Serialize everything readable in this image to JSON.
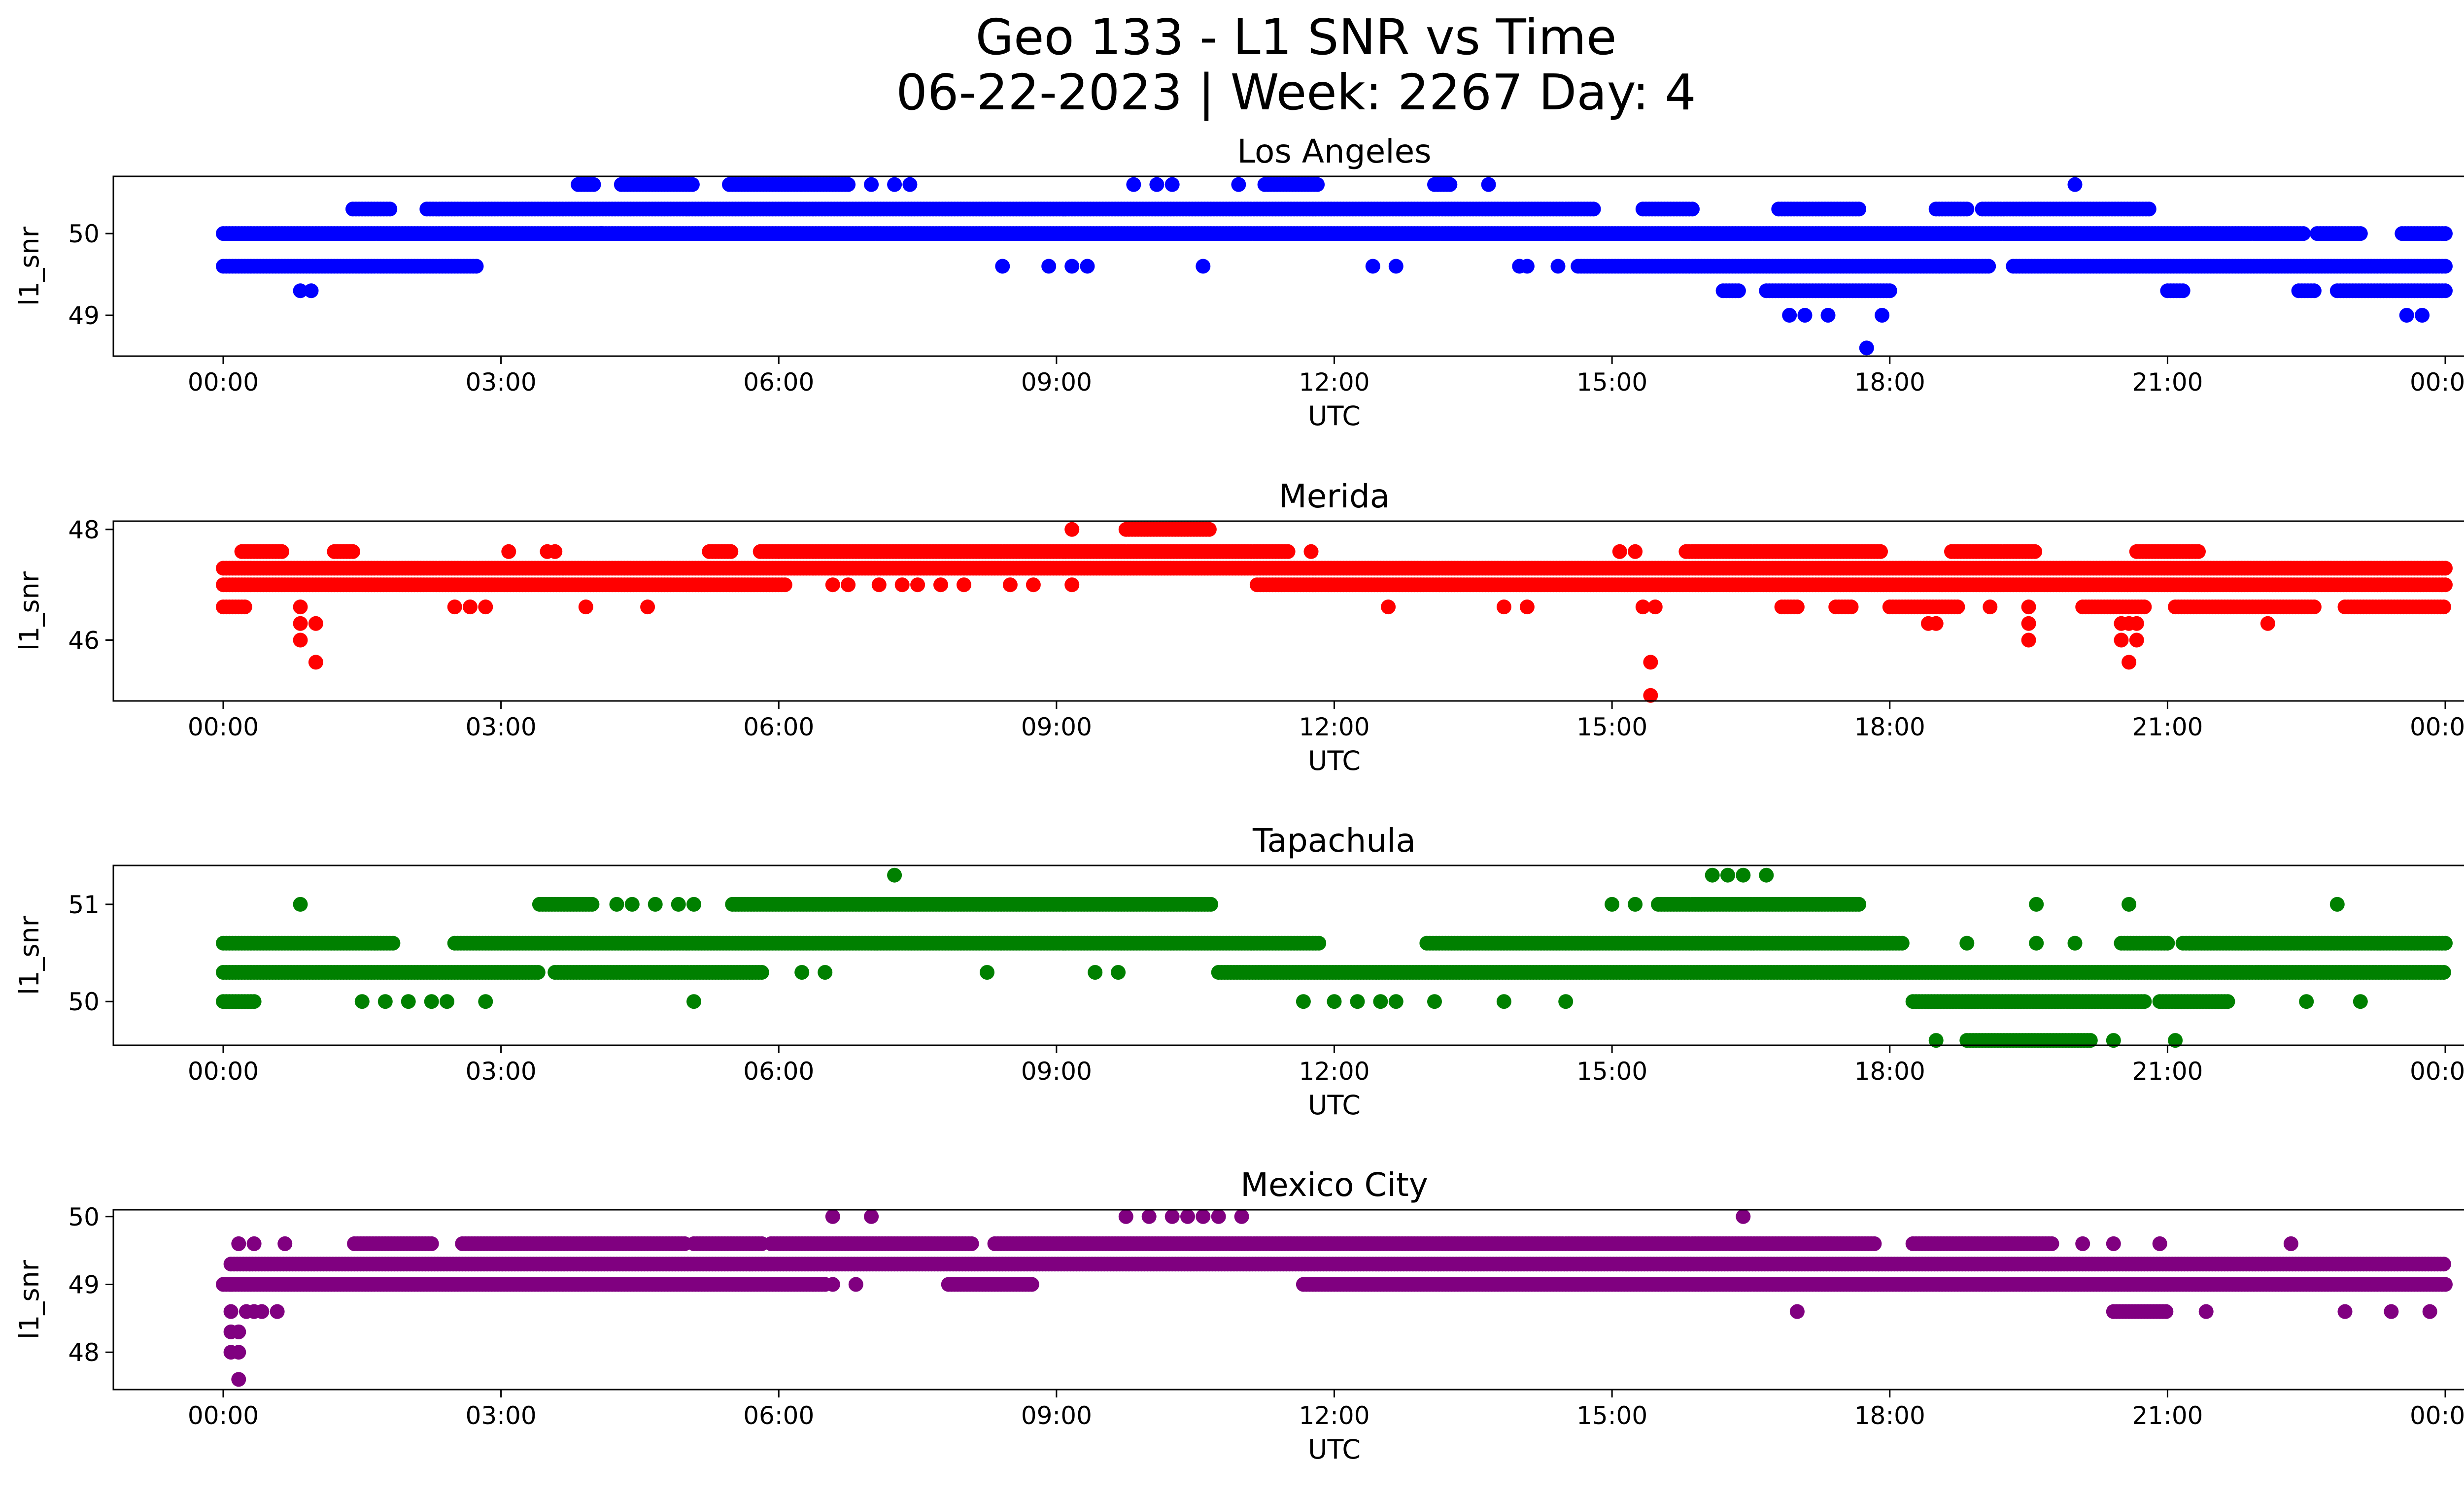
{
  "figure": {
    "title_line1": "Geo 133 - L1 SNR vs Time",
    "title_line2": "06-22-2023 | Week: 2267 Day: 4"
  },
  "chart_data": [
    {
      "type": "scatter",
      "title": "Los Angeles",
      "xlabel": "UTC",
      "ylabel": "l1_snr",
      "color": "#0000ff",
      "xlim": [
        "00:00",
        "24:00"
      ],
      "ylim": [
        48.5,
        50.7
      ],
      "x_ticks": [
        "00:00",
        "03:00",
        "06:00",
        "09:00",
        "12:00",
        "15:00",
        "18:00",
        "21:00",
        "00:00"
      ],
      "y_ticks": [
        49,
        50
      ],
      "runs": [
        {
          "y": 50.0,
          "from": "00:00",
          "to": "22:28"
        },
        {
          "y": 50.0,
          "from": "22:37",
          "to": "23:05"
        },
        {
          "y": 50.0,
          "from": "23:32",
          "to": "24:00"
        },
        {
          "y": 50.3,
          "from": "01:24",
          "to": "01:48"
        },
        {
          "y": 50.3,
          "from": "02:12",
          "to": "14:48"
        },
        {
          "y": 50.3,
          "from": "15:20",
          "to": "15:52"
        },
        {
          "y": 50.3,
          "from": "16:48",
          "to": "17:40"
        },
        {
          "y": 50.3,
          "from": "18:30",
          "to": "18:50"
        },
        {
          "y": 50.3,
          "from": "19:00",
          "to": "20:48"
        },
        {
          "y": 49.6,
          "from": "00:00",
          "to": "02:45"
        },
        {
          "y": 49.6,
          "from": "14:38",
          "to": "19:05"
        },
        {
          "y": 49.6,
          "from": "19:20",
          "to": "24:00"
        },
        {
          "y": 49.3,
          "from": "16:12",
          "to": "16:22"
        },
        {
          "y": 49.3,
          "from": "16:40",
          "to": "18:00"
        },
        {
          "y": 49.3,
          "from": "21:00",
          "to": "21:10"
        },
        {
          "y": 49.3,
          "from": "22:25",
          "to": "22:35"
        },
        {
          "y": 49.3,
          "from": "22:50",
          "to": "24:00"
        },
        {
          "y": 50.6,
          "from": "03:50",
          "to": "04:00"
        },
        {
          "y": 50.6,
          "from": "04:18",
          "to": "05:05"
        },
        {
          "y": 50.6,
          "from": "05:28",
          "to": "06:15"
        },
        {
          "y": 50.6,
          "from": "06:15",
          "to": "06:45"
        },
        {
          "y": 50.6,
          "from": "11:15",
          "to": "11:50"
        },
        {
          "y": 50.6,
          "from": "13:05",
          "to": "13:15"
        }
      ],
      "points": [
        {
          "x": "00:50",
          "y": 49.3
        },
        {
          "x": "00:57",
          "y": 49.3
        },
        {
          "x": "07:00",
          "y": 50.6
        },
        {
          "x": "07:15",
          "y": 50.6
        },
        {
          "x": "07:25",
          "y": 50.6
        },
        {
          "x": "09:50",
          "y": 50.6
        },
        {
          "x": "10:05",
          "y": 50.6
        },
        {
          "x": "10:15",
          "y": 50.6
        },
        {
          "x": "10:58",
          "y": 50.6
        },
        {
          "x": "13:40",
          "y": 50.6
        },
        {
          "x": "20:00",
          "y": 50.6
        },
        {
          "x": "08:25",
          "y": 49.6
        },
        {
          "x": "08:55",
          "y": 49.6
        },
        {
          "x": "09:10",
          "y": 49.6
        },
        {
          "x": "09:20",
          "y": 49.6
        },
        {
          "x": "10:35",
          "y": 49.6
        },
        {
          "x": "12:25",
          "y": 49.6
        },
        {
          "x": "12:40",
          "y": 49.6
        },
        {
          "x": "14:00",
          "y": 49.6
        },
        {
          "x": "14:05",
          "y": 49.6
        },
        {
          "x": "14:25",
          "y": 49.6
        },
        {
          "x": "04:05",
          "y": 50.0
        },
        {
          "x": "16:55",
          "y": 49.0
        },
        {
          "x": "17:05",
          "y": 49.0
        },
        {
          "x": "17:20",
          "y": 49.0
        },
        {
          "x": "17:55",
          "y": 49.0
        },
        {
          "x": "23:35",
          "y": 49.0
        },
        {
          "x": "23:45",
          "y": 49.0
        },
        {
          "x": "17:45",
          "y": 48.6
        }
      ]
    },
    {
      "type": "scatter",
      "title": "Merida",
      "xlabel": "UTC",
      "ylabel": "l1_snr",
      "color": "#ff0000",
      "xlim": [
        "00:00",
        "24:00"
      ],
      "ylim": [
        44.9,
        48.15
      ],
      "x_ticks": [
        "00:00",
        "03:00",
        "06:00",
        "09:00",
        "12:00",
        "15:00",
        "18:00",
        "21:00",
        "00:00"
      ],
      "y_ticks": [
        46,
        48
      ],
      "runs": [
        {
          "y": 47.3,
          "from": "00:00",
          "to": "24:00"
        },
        {
          "y": 47.0,
          "from": "00:00",
          "to": "06:05"
        },
        {
          "y": 47.0,
          "from": "11:10",
          "to": "24:00"
        },
        {
          "y": 47.6,
          "from": "00:12",
          "to": "00:38"
        },
        {
          "y": 47.6,
          "from": "01:12",
          "to": "01:25"
        },
        {
          "y": 47.6,
          "from": "05:15",
          "to": "05:30"
        },
        {
          "y": 47.6,
          "from": "05:48",
          "to": "06:00"
        },
        {
          "y": 47.6,
          "from": "06:00",
          "to": "11:30"
        },
        {
          "y": 47.6,
          "from": "15:48",
          "to": "17:55"
        },
        {
          "y": 47.6,
          "from": "18:40",
          "to": "19:35"
        },
        {
          "y": 47.6,
          "from": "20:40",
          "to": "21:20"
        },
        {
          "y": 46.6,
          "from": "00:00",
          "to": "00:15"
        },
        {
          "y": 46.6,
          "from": "16:50",
          "to": "17:00"
        },
        {
          "y": 46.6,
          "from": "17:25",
          "to": "17:35"
        },
        {
          "y": 46.6,
          "from": "18:00",
          "to": "18:45"
        },
        {
          "y": 46.6,
          "from": "20:05",
          "to": "20:45"
        },
        {
          "y": 46.6,
          "from": "21:05",
          "to": "22:35"
        },
        {
          "y": 46.6,
          "from": "22:55",
          "to": "24:00"
        },
        {
          "y": 48.0,
          "from": "09:45",
          "to": "10:40"
        }
      ],
      "points": [
        {
          "x": "06:35",
          "y": 47.0
        },
        {
          "x": "06:45",
          "y": 47.0
        },
        {
          "x": "07:05",
          "y": 47.0
        },
        {
          "x": "07:20",
          "y": 47.0
        },
        {
          "x": "07:30",
          "y": 47.0
        },
        {
          "x": "07:45",
          "y": 47.0
        },
        {
          "x": "08:00",
          "y": 47.0
        },
        {
          "x": "08:30",
          "y": 47.0
        },
        {
          "x": "08:45",
          "y": 47.0
        },
        {
          "x": "09:10",
          "y": 47.0
        },
        {
          "x": "03:05",
          "y": 47.6
        },
        {
          "x": "03:30",
          "y": 47.6
        },
        {
          "x": "03:35",
          "y": 47.6
        },
        {
          "x": "11:45",
          "y": 47.6
        },
        {
          "x": "15:05",
          "y": 47.6
        },
        {
          "x": "15:15",
          "y": 47.6
        },
        {
          "x": "09:10",
          "y": 48.0
        },
        {
          "x": "02:30",
          "y": 46.6
        },
        {
          "x": "02:40",
          "y": 46.6
        },
        {
          "x": "02:50",
          "y": 46.6
        },
        {
          "x": "03:55",
          "y": 46.6
        },
        {
          "x": "04:35",
          "y": 46.6
        },
        {
          "x": "12:35",
          "y": 46.6
        },
        {
          "x": "13:50",
          "y": 46.6
        },
        {
          "x": "14:05",
          "y": 46.6
        },
        {
          "x": "15:20",
          "y": 46.6
        },
        {
          "x": "15:28",
          "y": 46.6
        },
        {
          "x": "19:05",
          "y": 46.6
        },
        {
          "x": "19:30",
          "y": 46.6
        },
        {
          "x": "00:50",
          "y": 46.6
        },
        {
          "x": "00:50",
          "y": 46.3
        },
        {
          "x": "01:00",
          "y": 46.3
        },
        {
          "x": "00:50",
          "y": 46.0
        },
        {
          "x": "01:00",
          "y": 45.6
        },
        {
          "x": "15:25",
          "y": 45.6
        },
        {
          "x": "15:25",
          "y": 45.0
        },
        {
          "x": "18:25",
          "y": 46.3
        },
        {
          "x": "18:30",
          "y": 46.3
        },
        {
          "x": "19:30",
          "y": 46.3
        },
        {
          "x": "19:30",
          "y": 46.0
        },
        {
          "x": "20:30",
          "y": 46.3
        },
        {
          "x": "20:35",
          "y": 46.3
        },
        {
          "x": "20:40",
          "y": 46.3
        },
        {
          "x": "20:30",
          "y": 46.0
        },
        {
          "x": "20:40",
          "y": 46.0
        },
        {
          "x": "20:35",
          "y": 45.6
        },
        {
          "x": "22:05",
          "y": 46.3
        }
      ]
    },
    {
      "type": "scatter",
      "title": "Tapachula",
      "xlabel": "UTC",
      "ylabel": "l1_snr",
      "color": "#008000",
      "xlim": [
        "00:00",
        "24:00"
      ],
      "ylim": [
        49.55,
        51.4
      ],
      "x_ticks": [
        "00:00",
        "03:00",
        "06:00",
        "09:00",
        "12:00",
        "15:00",
        "18:00",
        "21:00",
        "00:00"
      ],
      "y_ticks": [
        50,
        51
      ],
      "runs": [
        {
          "y": 50.6,
          "from": "00:00",
          "to": "01:50"
        },
        {
          "y": 50.6,
          "from": "02:30",
          "to": "11:50"
        },
        {
          "y": 50.6,
          "from": "13:00",
          "to": "18:08"
        },
        {
          "y": 50.6,
          "from": "20:30",
          "to": "21:00"
        },
        {
          "y": 50.6,
          "from": "21:10",
          "to": "24:00"
        },
        {
          "y": 50.3,
          "from": "00:00",
          "to": "03:25"
        },
        {
          "y": 50.3,
          "from": "03:35",
          "to": "05:50"
        },
        {
          "y": 50.3,
          "from": "10:45",
          "to": "24:00"
        },
        {
          "y": 50.0,
          "from": "00:00",
          "to": "00:20"
        },
        {
          "y": 50.0,
          "from": "18:15",
          "to": "20:45"
        },
        {
          "y": 50.0,
          "from": "20:55",
          "to": "21:40"
        },
        {
          "y": 49.6,
          "from": "18:50",
          "to": "20:10"
        },
        {
          "y": 51.0,
          "from": "03:25",
          "to": "04:00"
        },
        {
          "y": 51.0,
          "from": "05:30",
          "to": "10:40"
        },
        {
          "y": 51.0,
          "from": "15:30",
          "to": "17:40"
        }
      ],
      "points": [
        {
          "x": "00:50",
          "y": 51.0
        },
        {
          "x": "04:15",
          "y": 51.0
        },
        {
          "x": "04:25",
          "y": 51.0
        },
        {
          "x": "04:40",
          "y": 51.0
        },
        {
          "x": "04:55",
          "y": 51.0
        },
        {
          "x": "05:05",
          "y": 51.0
        },
        {
          "x": "15:00",
          "y": 51.0
        },
        {
          "x": "15:15",
          "y": 51.0
        },
        {
          "x": "19:35",
          "y": 51.0
        },
        {
          "x": "20:35",
          "y": 51.0
        },
        {
          "x": "22:50",
          "y": 51.0
        },
        {
          "x": "07:15",
          "y": 51.3
        },
        {
          "x": "16:05",
          "y": 51.3
        },
        {
          "x": "16:15",
          "y": 51.3
        },
        {
          "x": "16:25",
          "y": 51.3
        },
        {
          "x": "16:40",
          "y": 51.3
        },
        {
          "x": "01:30",
          "y": 50.0
        },
        {
          "x": "01:45",
          "y": 50.0
        },
        {
          "x": "02:00",
          "y": 50.0
        },
        {
          "x": "02:15",
          "y": 50.0
        },
        {
          "x": "02:25",
          "y": 50.0
        },
        {
          "x": "02:50",
          "y": 50.0
        },
        {
          "x": "05:05",
          "y": 50.0
        },
        {
          "x": "11:40",
          "y": 50.0
        },
        {
          "x": "12:00",
          "y": 50.0
        },
        {
          "x": "12:15",
          "y": 50.0
        },
        {
          "x": "12:30",
          "y": 50.0
        },
        {
          "x": "12:40",
          "y": 50.0
        },
        {
          "x": "13:05",
          "y": 50.0
        },
        {
          "x": "13:50",
          "y": 50.0
        },
        {
          "x": "14:30",
          "y": 50.0
        },
        {
          "x": "22:30",
          "y": 50.0
        },
        {
          "x": "23:05",
          "y": 50.0
        },
        {
          "x": "08:15",
          "y": 50.3
        },
        {
          "x": "09:25",
          "y": 50.3
        },
        {
          "x": "09:40",
          "y": 50.3
        },
        {
          "x": "06:15",
          "y": 50.3
        },
        {
          "x": "06:30",
          "y": 50.3
        },
        {
          "x": "18:50",
          "y": 50.6
        },
        {
          "x": "19:35",
          "y": 50.6
        },
        {
          "x": "20:00",
          "y": 50.6
        },
        {
          "x": "18:30",
          "y": 49.6
        },
        {
          "x": "20:25",
          "y": 49.6
        },
        {
          "x": "21:05",
          "y": 49.6
        }
      ]
    },
    {
      "type": "scatter",
      "title": "Mexico City",
      "xlabel": "UTC",
      "ylabel": "l1_snr",
      "color": "#800080",
      "xlim": [
        "00:00",
        "24:00"
      ],
      "ylim": [
        47.45,
        50.1
      ],
      "x_ticks": [
        "00:00",
        "03:00",
        "06:00",
        "09:00",
        "12:00",
        "15:00",
        "18:00",
        "21:00",
        "00:00"
      ],
      "y_ticks": [
        48,
        49,
        50
      ],
      "runs": [
        {
          "y": 49.3,
          "from": "00:05",
          "to": "24:00"
        },
        {
          "y": 49.0,
          "from": "00:00",
          "to": "06:30"
        },
        {
          "y": 49.0,
          "from": "07:50",
          "to": "08:45"
        },
        {
          "y": 49.0,
          "from": "11:40",
          "to": "24:00"
        },
        {
          "y": 49.6,
          "from": "01:25",
          "to": "02:15"
        },
        {
          "y": 49.6,
          "from": "02:35",
          "to": "05:00"
        },
        {
          "y": 49.6,
          "from": "05:05",
          "to": "05:50"
        },
        {
          "y": 49.6,
          "from": "05:55",
          "to": "08:05"
        },
        {
          "y": 49.6,
          "from": "08:20",
          "to": "17:50"
        },
        {
          "y": 49.6,
          "from": "18:15",
          "to": "19:45"
        },
        {
          "y": 48.6,
          "from": "20:25",
          "to": "21:00"
        }
      ],
      "points": [
        {
          "x": "00:05",
          "y": 48.0
        },
        {
          "x": "00:05",
          "y": 48.3
        },
        {
          "x": "00:05",
          "y": 48.6
        },
        {
          "x": "00:10",
          "y": 48.0
        },
        {
          "x": "00:10",
          "y": 48.3
        },
        {
          "x": "00:10",
          "y": 47.6
        },
        {
          "x": "00:15",
          "y": 48.6
        },
        {
          "x": "00:20",
          "y": 48.6
        },
        {
          "x": "00:25",
          "y": 48.6
        },
        {
          "x": "00:35",
          "y": 48.6
        },
        {
          "x": "00:05",
          "y": 49.0
        },
        {
          "x": "00:10",
          "y": 49.6
        },
        {
          "x": "00:20",
          "y": 49.6
        },
        {
          "x": "00:40",
          "y": 49.6
        },
        {
          "x": "06:35",
          "y": 50.0
        },
        {
          "x": "07:00",
          "y": 50.0
        },
        {
          "x": "09:45",
          "y": 50.0
        },
        {
          "x": "10:00",
          "y": 50.0
        },
        {
          "x": "10:15",
          "y": 50.0
        },
        {
          "x": "10:25",
          "y": 50.0
        },
        {
          "x": "10:35",
          "y": 50.0
        },
        {
          "x": "10:45",
          "y": 50.0
        },
        {
          "x": "11:00",
          "y": 50.0
        },
        {
          "x": "16:25",
          "y": 50.0
        },
        {
          "x": "06:35",
          "y": 49.0
        },
        {
          "x": "06:50",
          "y": 49.0
        },
        {
          "x": "17:00",
          "y": 48.6
        },
        {
          "x": "21:25",
          "y": 48.6
        },
        {
          "x": "22:55",
          "y": 48.6
        },
        {
          "x": "23:25",
          "y": 48.6
        },
        {
          "x": "23:50",
          "y": 48.6
        },
        {
          "x": "20:05",
          "y": 49.6
        },
        {
          "x": "20:25",
          "y": 49.6
        },
        {
          "x": "20:55",
          "y": 49.6
        },
        {
          "x": "22:20",
          "y": 49.6
        }
      ]
    }
  ]
}
